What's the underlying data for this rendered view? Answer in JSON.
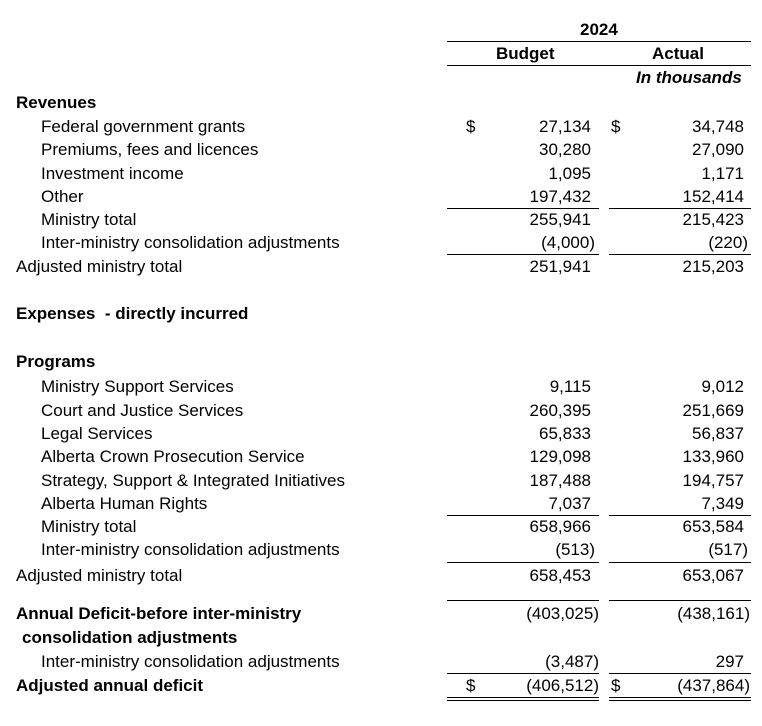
{
  "header": {
    "year": "2024",
    "col_budget": "Budget",
    "col_actual": "Actual",
    "units": "In thousands"
  },
  "revenues": {
    "heading": "Revenues",
    "rows": [
      {
        "label": "Federal government grants",
        "budget": "27,134",
        "actual": "34,748"
      },
      {
        "label": "Premiums, fees and licences",
        "budget": "30,280",
        "actual": "27,090"
      },
      {
        "label": "Investment income",
        "budget": "1,095",
        "actual": "1,171"
      },
      {
        "label": "Other",
        "budget": "197,432",
        "actual": "152,414"
      },
      {
        "label": "Ministry total",
        "budget": "255,941",
        "actual": "215,423"
      },
      {
        "label": "Inter-ministry consolidation adjustments",
        "budget": "(4,000)",
        "actual": "(220)"
      },
      {
        "label": "Adjusted ministry total",
        "budget": "251,941",
        "actual": "215,203"
      }
    ]
  },
  "expenses": {
    "heading": "Expenses  - directly incurred",
    "programs_heading": "Programs",
    "rows": [
      {
        "label": "Ministry Support Services",
        "budget": "9,115",
        "actual": "9,012"
      },
      {
        "label": "Court and Justice Services",
        "budget": "260,395",
        "actual": "251,669"
      },
      {
        "label": "Legal Services",
        "budget": "65,833",
        "actual": "56,837"
      },
      {
        "label": "Alberta Crown Prosecution Service",
        "budget": "129,098",
        "actual": "133,960"
      },
      {
        "label": "Strategy, Support & Integrated Initiatives",
        "budget": "187,488",
        "actual": "194,757"
      },
      {
        "label": "Alberta Human Rights",
        "budget": "7,037",
        "actual": "7,349"
      },
      {
        "label": "Ministry total",
        "budget": "658,966",
        "actual": "653,584"
      },
      {
        "label": "Inter-ministry consolidation adjustments",
        "budget": "(513)",
        "actual": "(517)"
      },
      {
        "label": "Adjusted ministry total",
        "budget": "658,453",
        "actual": "653,067"
      }
    ]
  },
  "deficit": {
    "label_line1": "Annual Deficit-before inter-ministry",
    "label_line2": "consolidation adjustments",
    "budget": "(403,025)",
    "actual": "(438,161)",
    "adj_label": "Inter-ministry consolidation adjustments",
    "adj_budget": "(3,487)",
    "adj_actual": "297",
    "final_label": "Adjusted annual deficit",
    "final_budget": "(406,512)",
    "final_actual": "(437,864)"
  },
  "currency_symbol": "$"
}
